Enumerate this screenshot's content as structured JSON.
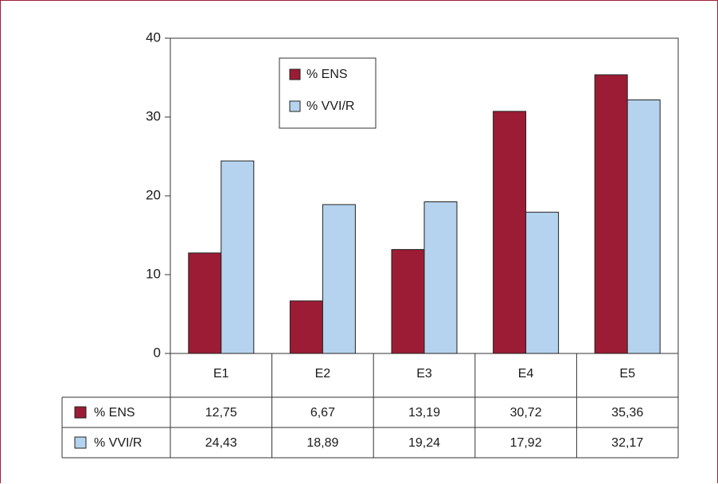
{
  "chart_data": {
    "type": "bar",
    "categories": [
      "E1",
      "E2",
      "E3",
      "E4",
      "E5"
    ],
    "series": [
      {
        "name": "% ENS",
        "values": [
          12.75,
          6.67,
          13.19,
          30.72,
          35.36
        ],
        "labels": [
          "12,75",
          "6,67",
          "13,19",
          "30,72",
          "35,36"
        ]
      },
      {
        "name": "% VVI/R",
        "values": [
          24.43,
          18.89,
          19.24,
          17.92,
          32.17
        ],
        "labels": [
          "24,43",
          "18,89",
          "19,24",
          "17,92",
          "32,17"
        ]
      }
    ],
    "ylim": [
      0,
      40
    ],
    "yticks": [
      0,
      10,
      20,
      30,
      40
    ],
    "legend_position": "top-left",
    "grid": false,
    "data_table": true
  },
  "colors": {
    "ens": "#9b1c34",
    "vvir": "#b5d3ee",
    "frame": "#a0203a",
    "axis": "#333333"
  }
}
